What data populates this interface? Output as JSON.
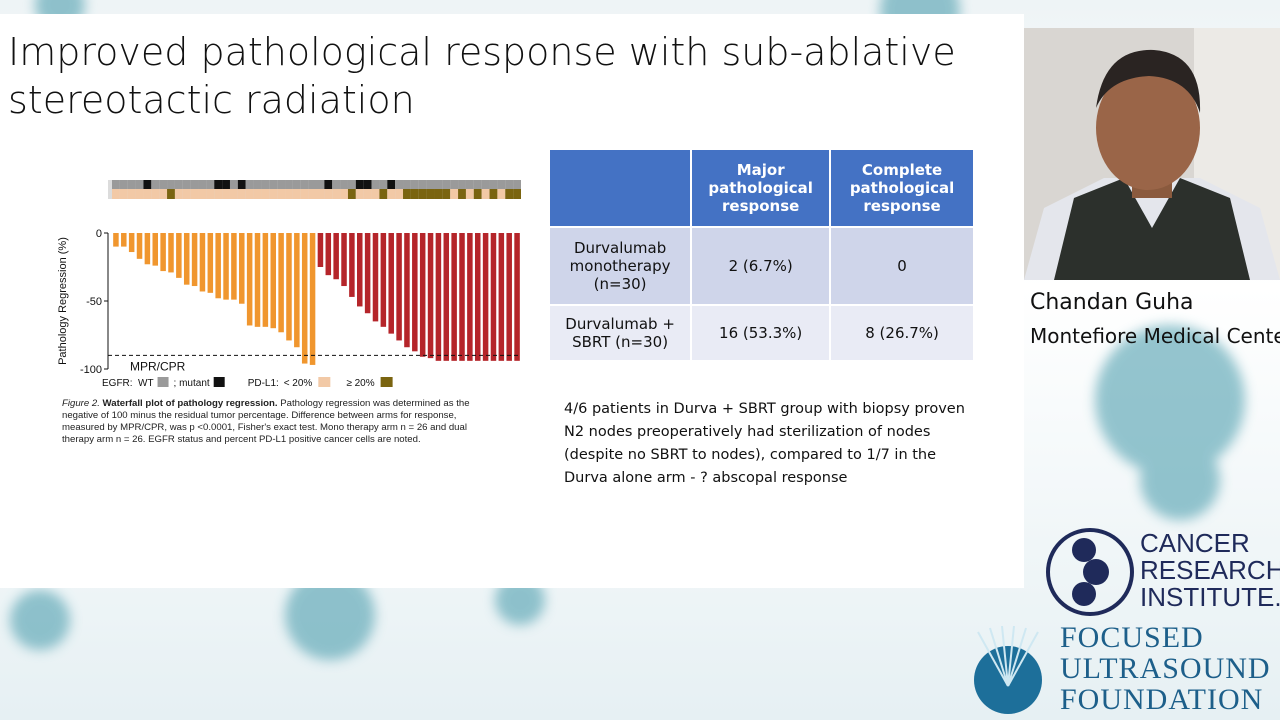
{
  "slide": {
    "title": "Improved pathological response with sub-ablative stereotactic radiation"
  },
  "chart_data": {
    "type": "waterfall",
    "y_label": "Pathology Regression (%)",
    "ylim": [
      -100,
      0
    ],
    "yticks": [
      -100,
      -50,
      0
    ],
    "series": [
      {
        "color": "#f0962e",
        "values": [
          -10,
          -10,
          -14,
          -19,
          -23,
          -24,
          -28,
          -29,
          -33,
          -38,
          -39,
          -43,
          -44,
          -48,
          -49,
          -49,
          -52,
          -68,
          -69,
          -69,
          -70,
          -73,
          -79,
          -84,
          -96,
          -97
        ]
      },
      {
        "color": "#b5252a",
        "values": [
          -25,
          -31,
          -34,
          -39,
          -47,
          -54,
          -59,
          -65,
          -69,
          -74,
          -79,
          -84,
          -87,
          -91,
          -92,
          -94,
          -94,
          -94,
          -94,
          -94,
          -94,
          -94,
          -94,
          -94,
          -94,
          -94
        ]
      }
    ],
    "reference_line": {
      "value": -90,
      "label": "MPR/CPR"
    },
    "egfr": {
      "title": "EGFR:",
      "legend": [
        {
          "label": "WT",
          "color": "#9a9a9a"
        },
        {
          "label": "; mutant",
          "color": "#111111"
        }
      ],
      "status": [
        0,
        0,
        0,
        0,
        1,
        0,
        0,
        0,
        0,
        0,
        0,
        0,
        0,
        1,
        1,
        0,
        1,
        0,
        0,
        0,
        0,
        0,
        0,
        0,
        0,
        0,
        0,
        1,
        0,
        0,
        0,
        1,
        1,
        0,
        0,
        1,
        0,
        0,
        0,
        0,
        0,
        0,
        0,
        0,
        0,
        0,
        0,
        0,
        0,
        0,
        0,
        0
      ]
    },
    "pdl1": {
      "title": "PD-L1:",
      "legend": [
        {
          "label": "< 20%",
          "color": "#f2c9a6"
        },
        {
          "label": "≥ 20%",
          "color": "#7a6410"
        }
      ],
      "status": [
        0,
        0,
        0,
        0,
        0,
        0,
        0,
        1,
        0,
        0,
        0,
        0,
        0,
        0,
        0,
        0,
        0,
        0,
        0,
        0,
        0,
        0,
        0,
        0,
        0,
        0,
        0,
        0,
        0,
        0,
        1,
        0,
        0,
        0,
        1,
        0,
        0,
        1,
        1,
        1,
        1,
        1,
        1,
        0,
        1,
        0,
        1,
        0,
        1,
        0,
        1,
        1
      ]
    },
    "caption": {
      "label": "Figure 2.",
      "heading": "Waterfall plot of pathology regression.",
      "body": "Pathology regression was determined as the negative of 100 minus the residual tumor percentage. Difference between arms for response, measured by MPR/CPR, was p <0.0001, Fisher's exact test.  Mono therapy arm n = 26 and dual therapy arm n = 26. EGFR status and percent PD-L1 positive cancer cells are noted."
    }
  },
  "table": {
    "header": [
      "Major pathological response",
      "Complete pathological response"
    ],
    "rows": [
      [
        "Durvalumab monotherapy (n=30)",
        "2 (6.7%)",
        "0"
      ],
      [
        "Durvalumab + SBRT (n=30)",
        "16 (53.3%)",
        "8 (26.7%)"
      ]
    ]
  },
  "note": "4/6 patients in Durva + SBRT group with biopsy proven N2 nodes preoperatively had sterilization of nodes (despite no SBRT to nodes), compared to 1/7 in the Durva alone arm - ? abscopal response",
  "speaker": {
    "name": "Chandan Guha",
    "affiliation": "Montefiore Medical Center"
  },
  "logos": {
    "cri": [
      "CANCER",
      "RESEARCH",
      "INSTITUTE."
    ],
    "fus": [
      "FOCUSED",
      "ULTRASOUND",
      "FOUNDATION"
    ]
  }
}
